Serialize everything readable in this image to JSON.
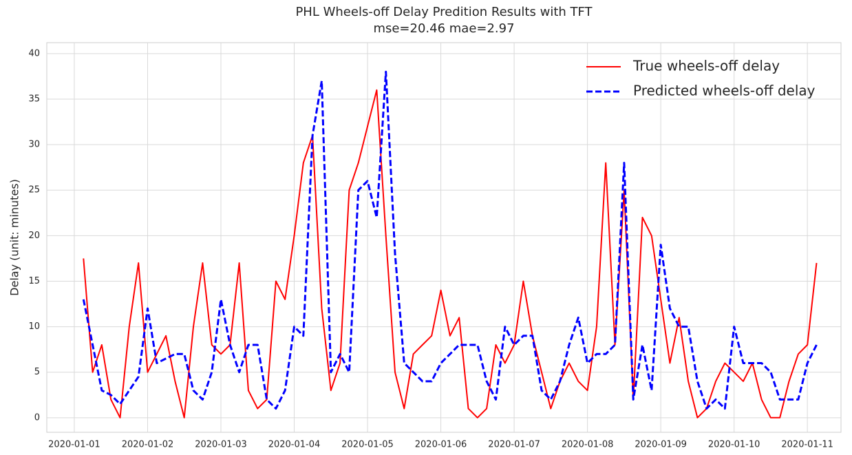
{
  "chart_data": {
    "type": "line",
    "title": "PHL Wheels-off Delay Predition Results with TFT",
    "subtitle": "mse=20.46 mae=2.97",
    "y_label": "Delay (unit: minutes)",
    "x": [
      "2020-01-01 03:00",
      "2020-01-01 06:00",
      "2020-01-01 09:00",
      "2020-01-01 12:00",
      "2020-01-01 15:00",
      "2020-01-01 18:00",
      "2020-01-01 21:00",
      "2020-01-02 00:00",
      "2020-01-02 03:00",
      "2020-01-02 06:00",
      "2020-01-02 09:00",
      "2020-01-02 12:00",
      "2020-01-02 15:00",
      "2020-01-02 18:00",
      "2020-01-02 21:00",
      "2020-01-03 00:00",
      "2020-01-03 03:00",
      "2020-01-03 06:00",
      "2020-01-03 09:00",
      "2020-01-03 12:00",
      "2020-01-03 15:00",
      "2020-01-03 18:00",
      "2020-01-03 21:00",
      "2020-01-04 00:00",
      "2020-01-04 03:00",
      "2020-01-04 06:00",
      "2020-01-04 09:00",
      "2020-01-04 12:00",
      "2020-01-04 15:00",
      "2020-01-04 18:00",
      "2020-01-04 21:00",
      "2020-01-05 00:00",
      "2020-01-05 03:00",
      "2020-01-05 06:00",
      "2020-01-05 09:00",
      "2020-01-05 12:00",
      "2020-01-05 15:00",
      "2020-01-05 18:00",
      "2020-01-05 21:00",
      "2020-01-06 00:00",
      "2020-01-06 03:00",
      "2020-01-06 06:00",
      "2020-01-06 09:00",
      "2020-01-06 12:00",
      "2020-01-06 15:00",
      "2020-01-06 18:00",
      "2020-01-06 21:00",
      "2020-01-07 00:00",
      "2020-01-07 03:00",
      "2020-01-07 06:00",
      "2020-01-07 09:00",
      "2020-01-07 12:00",
      "2020-01-07 15:00",
      "2020-01-07 18:00",
      "2020-01-07 21:00",
      "2020-01-08 00:00",
      "2020-01-08 03:00",
      "2020-01-08 06:00",
      "2020-01-08 09:00",
      "2020-01-08 12:00",
      "2020-01-08 15:00",
      "2020-01-08 18:00",
      "2020-01-08 21:00",
      "2020-01-09 00:00",
      "2020-01-09 03:00",
      "2020-01-09 06:00",
      "2020-01-09 09:00",
      "2020-01-09 12:00",
      "2020-01-09 15:00",
      "2020-01-09 18:00",
      "2020-01-09 21:00",
      "2020-01-10 00:00",
      "2020-01-10 03:00",
      "2020-01-10 06:00",
      "2020-01-10 09:00",
      "2020-01-10 12:00",
      "2020-01-10 15:00",
      "2020-01-10 18:00",
      "2020-01-10 21:00",
      "2020-01-11 00:00",
      "2020-01-11 03:00"
    ],
    "series": [
      {
        "name": "True wheels-off delay",
        "color": "#ff0000",
        "dash": "solid",
        "values": [
          17.5,
          5,
          8,
          2,
          0,
          10,
          17,
          5,
          7,
          9,
          4,
          0,
          10,
          17,
          8,
          7,
          8,
          17,
          3,
          1,
          2,
          15,
          13,
          20,
          28,
          31,
          12,
          3,
          6,
          25,
          28,
          32,
          36,
          20,
          5,
          1,
          7,
          8,
          9,
          14,
          9,
          11,
          1,
          0,
          1,
          8,
          6,
          8,
          15,
          9,
          5,
          1,
          4,
          6,
          4,
          3,
          10,
          28,
          8,
          25,
          2,
          22,
          20,
          13,
          6,
          11,
          4,
          0,
          1,
          4,
          6,
          5,
          4,
          6,
          2,
          0,
          0,
          4,
          7,
          8,
          17
        ]
      },
      {
        "name": "Predicted wheels-off delay",
        "color": "#0000ff",
        "dash": "dashed",
        "values": [
          13,
          8,
          3,
          2.5,
          1.5,
          3,
          4.5,
          12,
          6,
          6.5,
          7,
          7,
          3,
          2,
          5,
          13,
          8,
          5,
          8,
          8,
          2,
          1,
          3,
          10,
          9,
          31,
          37,
          5,
          7,
          5,
          25,
          26,
          22,
          38,
          18,
          6,
          5,
          4,
          4,
          6,
          7,
          8,
          8,
          8,
          4,
          2,
          10,
          8,
          9,
          9,
          3,
          2,
          4,
          8,
          11,
          6,
          7,
          7,
          8,
          28,
          2,
          8,
          3,
          19,
          12,
          10,
          10,
          4,
          1,
          2,
          1,
          10,
          6,
          6,
          6,
          5,
          2,
          2,
          2,
          6,
          8
        ]
      }
    ],
    "xlim": [
      "2019-12-31 15:00",
      "2020-01-11 11:00"
    ],
    "xticks": [
      "2020-01-01",
      "2020-01-02",
      "2020-01-03",
      "2020-01-04",
      "2020-01-05",
      "2020-01-06",
      "2020-01-07",
      "2020-01-08",
      "2020-01-09",
      "2020-01-10",
      "2020-01-11"
    ],
    "ylim": [
      -1.6,
      41.2
    ],
    "yticks": [
      0,
      5,
      10,
      15,
      20,
      25,
      30,
      35,
      40
    ],
    "grid": true,
    "legend": "upper right"
  }
}
